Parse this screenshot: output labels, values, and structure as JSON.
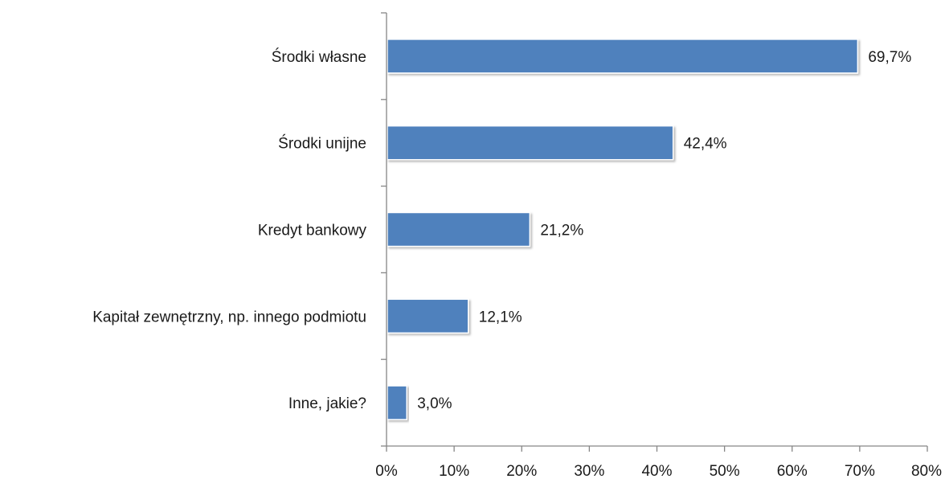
{
  "chart_data": {
    "type": "bar",
    "orientation": "horizontal",
    "title": "",
    "xlabel": "",
    "ylabel": "",
    "categories": [
      "Środki własne",
      "Środki unijne",
      "Kredyt bankowy",
      "Kapitał zewnętrzny, np. innego podmiotu",
      "Inne, jakie?"
    ],
    "values": [
      69.7,
      42.4,
      21.2,
      12.1,
      3.0
    ],
    "value_labels": [
      "69,7%",
      "42,4%",
      "21,2%",
      "12,1%",
      "3,0%"
    ],
    "xlim": [
      0,
      80
    ],
    "x_ticks": [
      0,
      10,
      20,
      30,
      40,
      50,
      60,
      70,
      80
    ],
    "x_tick_labels": [
      "0%",
      "10%",
      "20%",
      "30%",
      "40%",
      "50%",
      "60%",
      "70%",
      "80%"
    ],
    "grid": false,
    "legend": "none",
    "bar_color": "#4f81bd"
  }
}
